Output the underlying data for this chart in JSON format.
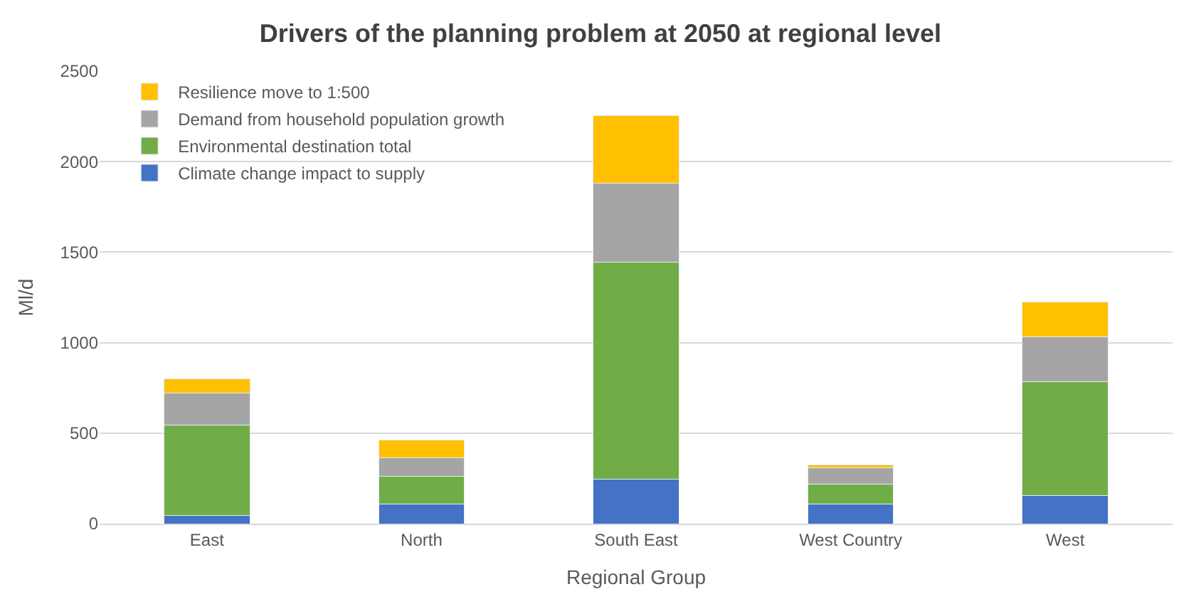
{
  "chart_data": {
    "type": "bar",
    "stacked": true,
    "title": "Drivers of the planning problem at 2050 at regional level",
    "xlabel": "Regional Group",
    "ylabel": "Ml/d",
    "categories": [
      "East",
      "North",
      "South East",
      "West Country",
      "West"
    ],
    "series": [
      {
        "name": "Climate change impact to supply",
        "color": "#4472c4",
        "values": [
          45,
          110,
          245,
          110,
          155
        ]
      },
      {
        "name": "Environmental destination total",
        "color": "#70ad47",
        "values": [
          500,
          150,
          1200,
          110,
          630
        ]
      },
      {
        "name": "Demand from household population growth",
        "color": "#a5a5a5",
        "values": [
          175,
          105,
          435,
          90,
          245
        ]
      },
      {
        "name": "Resilience move to 1:500",
        "color": "#ffc000",
        "values": [
          80,
          95,
          375,
          15,
          195
        ]
      }
    ],
    "ylim": [
      0,
      2500
    ],
    "yticks": [
      0,
      500,
      1000,
      1500,
      2000,
      2500
    ],
    "grid": "y",
    "legend": "top left"
  }
}
